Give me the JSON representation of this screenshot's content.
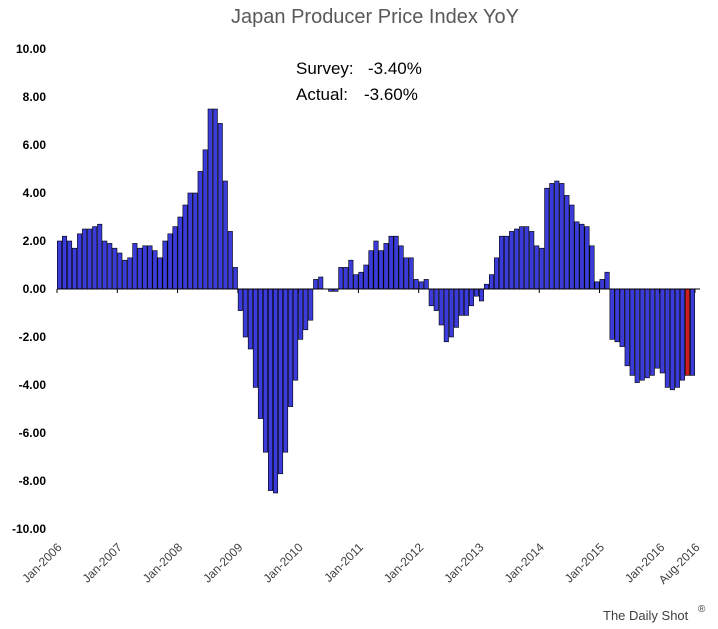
{
  "chart_data": {
    "type": "bar",
    "title": "Japan Producer Price Index YoY",
    "xlabel": "",
    "ylabel": "",
    "ylim": [
      -10,
      10
    ],
    "ytick_labels": [
      "10.00",
      "8.00",
      "6.00",
      "4.00",
      "2.00",
      "0.00",
      "-2.00",
      "-4.00",
      "-6.00",
      "-8.00",
      "-10.00"
    ],
    "ytick_values": [
      10,
      8,
      6,
      4,
      2,
      0,
      -2,
      -4,
      -6,
      -8,
      -10
    ],
    "xtick_labels": [
      "Jan-2006",
      "Jan-2007",
      "Jan-2008",
      "Jan-2009",
      "Jan-2010",
      "Jan-2011",
      "Jan-2012",
      "Jan-2013",
      "Jan-2014",
      "Jan-2015",
      "Jan-2016",
      "Aug-2016"
    ],
    "xtick_month_index": [
      0,
      12,
      24,
      36,
      48,
      60,
      72,
      84,
      96,
      108,
      120,
      127
    ],
    "start_month": "Jan-2006",
    "months_total": 128,
    "grid": false,
    "colors": {
      "bar": "#3b3bd9",
      "highlight": "#cc1f1f",
      "edge": "#000000",
      "axis": "#000000"
    },
    "series": [
      {
        "name": "Japan PPI YoY",
        "values": [
          2.0,
          2.2,
          2.0,
          1.7,
          2.3,
          2.5,
          2.5,
          2.6,
          2.7,
          2.0,
          1.9,
          1.7,
          1.5,
          1.2,
          1.3,
          1.9,
          1.7,
          1.8,
          1.8,
          1.6,
          1.3,
          2.0,
          2.3,
          2.6,
          3.0,
          3.5,
          4.0,
          4.0,
          4.9,
          5.8,
          7.5,
          7.5,
          6.9,
          4.5,
          2.4,
          0.9,
          -0.9,
          -2.0,
          -2.5,
          -4.1,
          -5.4,
          -6.8,
          -8.4,
          -8.5,
          -7.7,
          -6.8,
          -4.9,
          -3.8,
          -2.1,
          -1.7,
          -1.3,
          0.4,
          0.5,
          0.0,
          -0.1,
          -0.1,
          0.9,
          0.9,
          1.2,
          0.6,
          0.7,
          1.0,
          1.6,
          2.0,
          1.6,
          1.9,
          2.2,
          2.2,
          1.8,
          1.3,
          1.3,
          0.4,
          0.3,
          0.4,
          -0.7,
          -0.9,
          -1.5,
          -2.2,
          -2.0,
          -1.6,
          -1.1,
          -1.1,
          -0.7,
          -0.3,
          -0.5,
          0.2,
          0.6,
          1.3,
          2.2,
          2.2,
          2.4,
          2.5,
          2.6,
          2.6,
          2.4,
          1.8,
          1.7,
          4.2,
          4.4,
          4.5,
          4.4,
          3.9,
          3.5,
          2.8,
          2.7,
          2.6,
          1.8,
          0.3,
          0.4,
          0.7,
          -2.1,
          -2.2,
          -2.4,
          -3.2,
          -3.6,
          -3.9,
          -3.8,
          -3.7,
          -3.6,
          -3.3,
          -3.5,
          -4.1,
          -4.2,
          -4.1,
          -3.8,
          -3.6,
          -3.6,
          0
        ],
        "highlight_index": 125
      }
    ]
  },
  "annotation": {
    "survey_label": "Survey:",
    "survey_value": "-3.40%",
    "actual_label": "Actual:",
    "actual_value": "-3.60%"
  },
  "credit": {
    "text": "The Daily Shot",
    "mark": "®"
  }
}
